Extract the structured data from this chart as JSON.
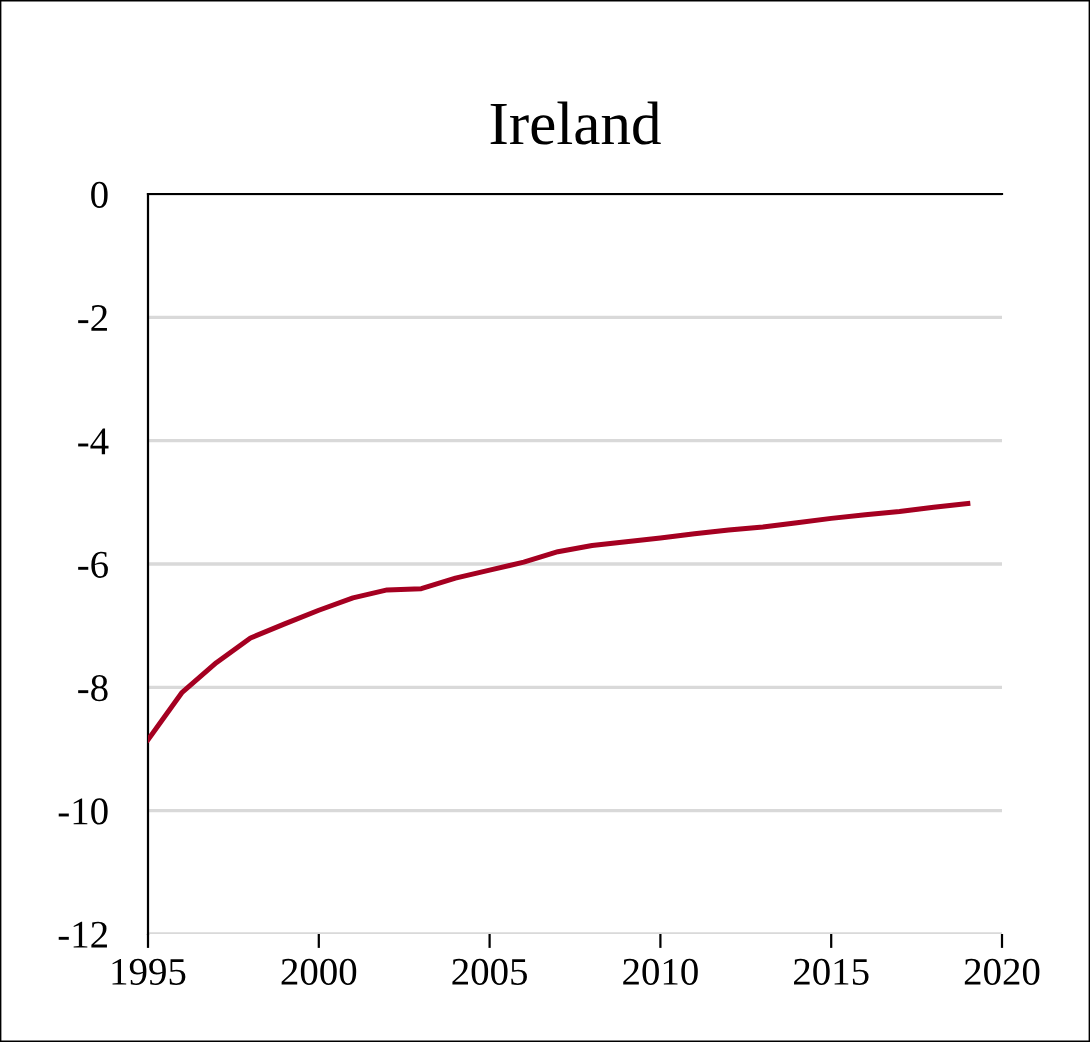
{
  "chart_data": {
    "type": "line",
    "title": "Ireland",
    "x": [
      1995,
      1996,
      1997,
      1998,
      1999,
      2000,
      2001,
      2002,
      2003,
      2004,
      2005,
      2006,
      2007,
      2008,
      2009,
      2010,
      2011,
      2012,
      2013,
      2014,
      2015,
      2016,
      2017,
      2018,
      2019
    ],
    "series": [
      {
        "color": "#a50021",
        "values": [
          -8.85,
          -8.08,
          -7.6,
          -7.2,
          -6.97,
          -6.75,
          -6.55,
          -6.42,
          -6.4,
          -6.23,
          -6.1,
          -5.97,
          -5.8,
          -5.7,
          -5.64,
          -5.58,
          -5.51,
          -5.45,
          -5.4,
          -5.33,
          -5.26,
          -5.2,
          -5.15,
          -5.08,
          -5.02
        ]
      }
    ],
    "xlim": [
      1995,
      2020
    ],
    "xticks": [
      1995,
      2000,
      2005,
      2010,
      2015,
      2020
    ],
    "ylim": [
      -12,
      0
    ],
    "yticks": [
      -12,
      -10,
      -8,
      -6,
      -4,
      -2,
      0
    ],
    "grid": "y",
    "marker": "none",
    "line_style": "solid",
    "legend": false
  }
}
